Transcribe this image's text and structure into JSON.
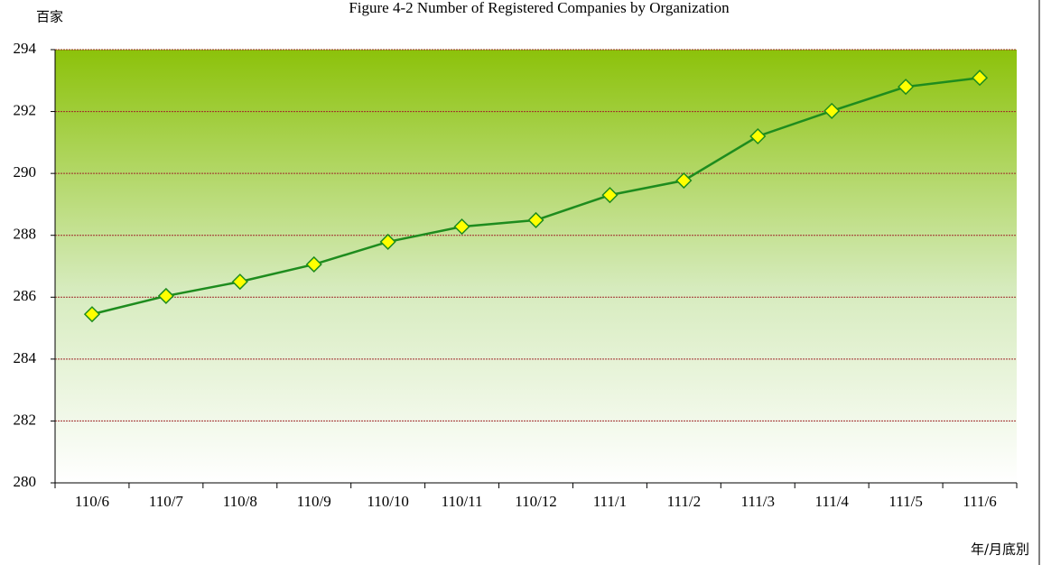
{
  "chart_data": {
    "type": "line",
    "title": "Figure 4-2    Number of Registered Companies by Organization",
    "y_label": "百家",
    "x_label": "年/月底別",
    "categories": [
      "110/6",
      "110/7",
      "110/8",
      "110/9",
      "110/10",
      "110/11",
      "110/12",
      "111/1",
      "111/2",
      "111/3",
      "111/4",
      "111/5",
      "111/6"
    ],
    "series": [
      {
        "color": "#1e8c1e",
        "marker_color": "#ffff00",
        "values": [
          285.45,
          286.04,
          286.5,
          287.06,
          287.79,
          288.28,
          288.49,
          289.3,
          289.77,
          291.2,
          292.02,
          292.8,
          293.09
        ]
      }
    ],
    "ylim": [
      280,
      294
    ],
    "yticks": [
      280,
      282,
      284,
      286,
      288,
      290,
      292,
      294
    ],
    "grid": true
  }
}
